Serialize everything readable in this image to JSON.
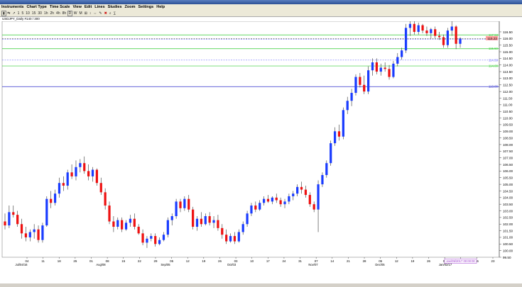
{
  "menu": {
    "items": [
      "Instruments",
      "Chart Type",
      "Time Scale",
      "View",
      "Edit",
      "Lines",
      "Studies",
      "Zoom",
      "Settings",
      "Help"
    ]
  },
  "toolbar": {
    "items": [
      "1",
      "5",
      "10",
      "15",
      "30",
      "1h",
      "2h",
      "4h",
      "8h"
    ],
    "period_items": [
      "D",
      "W",
      "M"
    ]
  },
  "infobar": {
    "text": "USDJPY_Daily #140 / 300"
  },
  "chart_data": {
    "type": "candlestick",
    "symbol": "USDJPY",
    "timeframe": "Daily",
    "ylim": [
      99.5,
      117.3
    ],
    "y_ticks": [
      "116.50",
      "116.00",
      "115.50",
      "115.00",
      "114.50",
      "114.00",
      "113.50",
      "113.00",
      "112.50",
      "112.00",
      "111.50",
      "111.00",
      "110.50",
      "110.00",
      "109.50",
      "109.00",
      "108.50",
      "108.00",
      "107.50",
      "107.00",
      "106.50",
      "106.00",
      "105.50",
      "105.00",
      "104.50",
      "104.00",
      "103.50",
      "103.00",
      "102.50",
      "102.00",
      "101.50",
      "101.00",
      "100.50",
      "100.00",
      "99.50"
    ],
    "x_ticks": [
      "04",
      "11",
      "18",
      "25",
      "01",
      "08",
      "15",
      "22",
      "29",
      "05",
      "12",
      "19",
      "26",
      "03",
      "10",
      "17",
      "24",
      "31",
      "07",
      "14",
      "21",
      "28",
      "05",
      "12",
      "19",
      "26",
      "02",
      "09",
      "16",
      "23"
    ],
    "month_labels": [
      "Jul/04/16",
      "Aug/08",
      "Sep/05",
      "Oct/03",
      "Nov/07",
      "Dec/05",
      "Jan/02/17"
    ],
    "horizontal_lines": [
      {
        "label": "117.53",
        "value": 116.27,
        "color": "#33cc33"
      },
      {
        "label": "116.80",
        "value": 115.94,
        "color": "#7777ff",
        "dashed": true
      },
      {
        "label": "115.50",
        "value": 115.23,
        "color": "#33cc33"
      },
      {
        "label": "114.59",
        "value": 114.37,
        "color": "#7777ff",
        "dashed": true
      },
      {
        "label": "114.00",
        "value": 113.93,
        "color": "#33cc33"
      },
      {
        "label": "113.00",
        "value": 112.37,
        "color": "#3333cc"
      }
    ],
    "last_price_label": "115.22",
    "cursor_label": "Jan/09/2017 00:00:00",
    "candles": [
      [
        102.2,
        102.8,
        101.6,
        101.9
      ],
      [
        101.9,
        103.4,
        101.7,
        102.9
      ],
      [
        102.9,
        103.4,
        102.5,
        102.7
      ],
      [
        102.7,
        103.0,
        101.8,
        102.0
      ],
      [
        102.0,
        102.4,
        100.9,
        101.3
      ],
      [
        101.3,
        101.8,
        100.7,
        101.0
      ],
      [
        101.0,
        101.6,
        100.7,
        101.4
      ],
      [
        101.4,
        102.0,
        100.9,
        101.6
      ],
      [
        101.6,
        101.9,
        100.6,
        100.8
      ],
      [
        100.8,
        102.1,
        100.6,
        101.9
      ],
      [
        101.9,
        104.1,
        101.8,
        103.9
      ],
      [
        103.9,
        104.5,
        103.2,
        103.6
      ],
      [
        103.6,
        104.6,
        103.4,
        104.3
      ],
      [
        104.3,
        105.5,
        104.0,
        105.1
      ],
      [
        105.1,
        105.6,
        104.5,
        104.9
      ],
      [
        104.9,
        106.1,
        104.6,
        105.9
      ],
      [
        105.9,
        106.5,
        105.4,
        105.6
      ],
      [
        105.6,
        106.8,
        105.3,
        106.3
      ],
      [
        106.3,
        106.9,
        105.9,
        106.6
      ],
      [
        106.6,
        107.1,
        105.8,
        106.0
      ],
      [
        106.0,
        106.5,
        105.3,
        105.6
      ],
      [
        105.6,
        106.3,
        105.2,
        106.1
      ],
      [
        106.1,
        106.2,
        104.9,
        105.1
      ],
      [
        105.1,
        105.5,
        104.2,
        104.4
      ],
      [
        104.4,
        104.7,
        103.1,
        103.4
      ],
      [
        103.4,
        103.7,
        102.0,
        102.2
      ],
      [
        102.2,
        102.6,
        101.4,
        101.8
      ],
      [
        101.8,
        102.5,
        101.6,
        102.3
      ],
      [
        102.3,
        102.5,
        101.4,
        101.6
      ],
      [
        101.6,
        102.3,
        101.5,
        102.1
      ],
      [
        102.1,
        102.7,
        101.8,
        102.4
      ],
      [
        102.4,
        102.8,
        101.6,
        101.8
      ],
      [
        101.8,
        102.0,
        101.2,
        101.3
      ],
      [
        101.3,
        101.6,
        100.4,
        100.6
      ],
      [
        100.6,
        101.1,
        100.2,
        100.9
      ],
      [
        100.9,
        101.3,
        100.7,
        101.1
      ],
      [
        101.1,
        101.3,
        100.3,
        100.5
      ],
      [
        100.5,
        101.0,
        100.4,
        100.8
      ],
      [
        100.8,
        101.4,
        100.7,
        101.2
      ],
      [
        101.2,
        102.5,
        101.0,
        102.3
      ],
      [
        102.3,
        102.8,
        101.9,
        102.6
      ],
      [
        102.6,
        103.9,
        102.4,
        103.7
      ],
      [
        103.7,
        103.9,
        102.9,
        103.2
      ],
      [
        103.2,
        104.1,
        103.0,
        103.9
      ],
      [
        103.9,
        104.2,
        102.9,
        103.1
      ],
      [
        103.1,
        103.3,
        101.6,
        101.8
      ],
      [
        101.8,
        102.6,
        101.5,
        102.4
      ],
      [
        102.4,
        102.9,
        101.8,
        102.0
      ],
      [
        102.0,
        102.8,
        101.9,
        102.6
      ],
      [
        102.6,
        102.9,
        101.9,
        102.1
      ],
      [
        102.1,
        102.6,
        101.7,
        102.3
      ],
      [
        102.3,
        102.7,
        101.5,
        101.7
      ],
      [
        101.7,
        102.0,
        100.9,
        101.2
      ],
      [
        101.2,
        101.6,
        100.5,
        100.7
      ],
      [
        100.7,
        101.3,
        100.6,
        101.1
      ],
      [
        101.1,
        101.4,
        100.5,
        100.7
      ],
      [
        100.7,
        101.6,
        100.6,
        101.4
      ],
      [
        101.4,
        102.2,
        101.2,
        102.0
      ],
      [
        102.0,
        103.0,
        101.8,
        102.8
      ],
      [
        102.8,
        103.6,
        102.6,
        103.4
      ],
      [
        103.4,
        103.7,
        102.9,
        103.1
      ],
      [
        103.1,
        103.8,
        103.0,
        103.6
      ],
      [
        103.6,
        104.1,
        103.4,
        103.9
      ],
      [
        103.9,
        104.2,
        103.6,
        103.7
      ],
      [
        103.7,
        104.1,
        103.5,
        104.0
      ],
      [
        104.0,
        104.3,
        103.6,
        103.8
      ],
      [
        103.8,
        104.0,
        103.3,
        103.5
      ],
      [
        103.5,
        103.9,
        103.2,
        103.7
      ],
      [
        103.7,
        104.3,
        103.5,
        104.1
      ],
      [
        104.1,
        104.5,
        103.8,
        104.3
      ],
      [
        104.3,
        105.0,
        104.1,
        104.8
      ],
      [
        104.8,
        105.2,
        104.3,
        104.6
      ],
      [
        104.6,
        104.9,
        104.0,
        104.2
      ],
      [
        104.2,
        104.4,
        103.3,
        103.5
      ],
      [
        103.5,
        103.7,
        102.9,
        103.1
      ],
      [
        103.1,
        105.3,
        101.4,
        105.0
      ],
      [
        105.0,
        105.9,
        104.8,
        105.7
      ],
      [
        105.7,
        106.8,
        105.5,
        106.6
      ],
      [
        106.6,
        108.3,
        106.4,
        108.1
      ],
      [
        108.1,
        109.3,
        107.9,
        109.0
      ],
      [
        109.0,
        109.5,
        108.3,
        108.6
      ],
      [
        108.6,
        110.8,
        108.4,
        110.6
      ],
      [
        110.6,
        111.6,
        110.3,
        111.3
      ],
      [
        111.3,
        112.2,
        110.9,
        111.9
      ],
      [
        111.9,
        113.3,
        111.7,
        113.1
      ],
      [
        113.1,
        113.4,
        112.3,
        112.5
      ],
      [
        112.5,
        113.2,
        111.8,
        112.0
      ],
      [
        112.0,
        113.9,
        111.8,
        113.6
      ],
      [
        113.6,
        114.5,
        113.2,
        114.2
      ],
      [
        114.2,
        114.5,
        113.3,
        113.5
      ],
      [
        113.5,
        114.1,
        113.2,
        113.8
      ],
      [
        113.8,
        114.2,
        113.5,
        113.7
      ],
      [
        113.7,
        114.0,
        112.9,
        113.1
      ],
      [
        113.1,
        114.3,
        113.0,
        114.1
      ],
      [
        114.1,
        114.9,
        113.9,
        114.6
      ],
      [
        114.6,
        115.3,
        114.4,
        115.1
      ],
      [
        115.1,
        117.1,
        114.9,
        116.8
      ],
      [
        116.8,
        117.6,
        116.2,
        117.1
      ],
      [
        117.1,
        117.3,
        116.3,
        116.5
      ],
      [
        116.5,
        117.2,
        116.3,
        117.0
      ],
      [
        117.0,
        117.1,
        116.4,
        116.6
      ],
      [
        116.6,
        116.9,
        116.2,
        116.4
      ],
      [
        116.4,
        116.8,
        116.0,
        116.7
      ],
      [
        116.7,
        116.9,
        116.0,
        116.2
      ],
      [
        116.2,
        116.5,
        115.9,
        116.1
      ],
      [
        116.1,
        116.3,
        115.3,
        115.5
      ],
      [
        115.5,
        116.8,
        115.3,
        116.6
      ],
      [
        116.6,
        117.6,
        116.2,
        116.9
      ],
      [
        116.9,
        117.0,
        115.2,
        115.6
      ],
      [
        115.6,
        116.1,
        115.3,
        116.0
      ]
    ]
  }
}
